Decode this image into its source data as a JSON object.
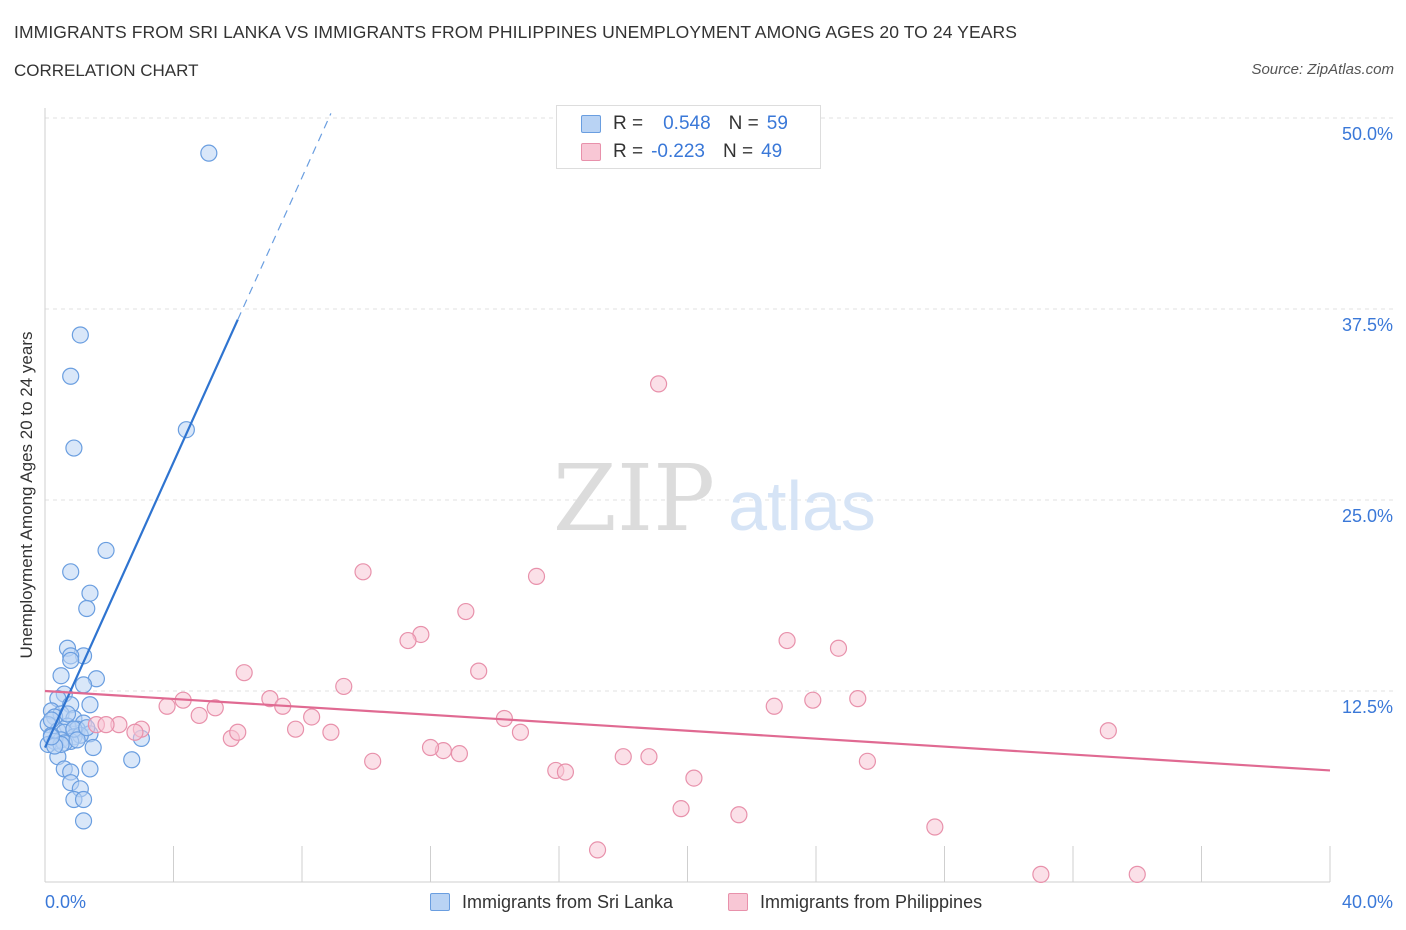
{
  "title": "IMMIGRANTS FROM SRI LANKA VS IMMIGRANTS FROM PHILIPPINES UNEMPLOYMENT AMONG AGES 20 TO 24 YEARS",
  "subtitle": "CORRELATION CHART",
  "source": "Source: ZipAtlas.com",
  "watermark": {
    "zip": "ZIP",
    "atlas": "atlas"
  },
  "legend": {
    "r_label": "R =",
    "n_label": "N =",
    "series": [
      {
        "name": "Immigrants from Sri Lanka",
        "r": "0.548",
        "n": "59",
        "fill": "#b9d3f4",
        "stroke": "#6a9ee0"
      },
      {
        "name": "Immigrants from Philippines",
        "r": "-0.223",
        "n": "49",
        "fill": "#f8c7d5",
        "stroke": "#e891ab"
      }
    ]
  },
  "chart_data": {
    "type": "scatter",
    "title": "IMMIGRANTS FROM SRI LANKA VS IMMIGRANTS FROM PHILIPPINES UNEMPLOYMENT AMONG AGES 20 TO 24 YEARS",
    "xlabel": "",
    "ylabel": "Unemployment Among Ages 20 to 24 years",
    "xlim": [
      0,
      40
    ],
    "ylim": [
      0,
      50
    ],
    "x_tick_labels": [
      {
        "value": 0,
        "label": "0.0%"
      },
      {
        "value": 40,
        "label": "40.0%"
      }
    ],
    "y_tick_labels": [
      {
        "value": 12.5,
        "label": "12.5%"
      },
      {
        "value": 25,
        "label": "25.0%"
      },
      {
        "value": 37.5,
        "label": "37.5%"
      },
      {
        "value": 50,
        "label": "50.0%"
      }
    ],
    "series": [
      {
        "name": "Immigrants from Sri Lanka",
        "color": "#6a9ee0",
        "trend": {
          "x0": 0,
          "y0": 8.8,
          "x1": 6.0,
          "y1": 36.8,
          "dash_x1": 8.9,
          "dash_y1": 50.3
        },
        "points": [
          [
            5.1,
            47.7
          ],
          [
            1.1,
            35.8
          ],
          [
            0.8,
            33.1
          ],
          [
            0.9,
            28.4
          ],
          [
            4.4,
            29.6
          ],
          [
            1.9,
            21.7
          ],
          [
            0.8,
            20.3
          ],
          [
            1.4,
            18.9
          ],
          [
            1.3,
            17.9
          ],
          [
            0.7,
            15.3
          ],
          [
            1.2,
            14.8
          ],
          [
            0.8,
            14.8
          ],
          [
            0.8,
            14.5
          ],
          [
            0.5,
            13.5
          ],
          [
            1.6,
            13.3
          ],
          [
            1.2,
            12.9
          ],
          [
            0.6,
            12.3
          ],
          [
            0.4,
            12.0
          ],
          [
            0.8,
            11.6
          ],
          [
            1.4,
            11.6
          ],
          [
            0.2,
            11.2
          ],
          [
            0.5,
            11.0
          ],
          [
            0.3,
            10.8
          ],
          [
            0.9,
            10.7
          ],
          [
            1.2,
            10.4
          ],
          [
            0.1,
            10.3
          ],
          [
            0.7,
            10.2
          ],
          [
            1.0,
            10.0
          ],
          [
            0.4,
            9.9
          ],
          [
            0.6,
            9.8
          ],
          [
            1.4,
            9.7
          ],
          [
            0.2,
            9.6
          ],
          [
            0.9,
            9.5
          ],
          [
            1.1,
            9.6
          ],
          [
            0.5,
            9.3
          ],
          [
            0.3,
            9.2
          ],
          [
            0.8,
            9.2
          ],
          [
            0.1,
            9.0
          ],
          [
            0.6,
            9.1
          ],
          [
            3.0,
            9.4
          ],
          [
            1.5,
            8.8
          ],
          [
            0.4,
            8.2
          ],
          [
            2.7,
            8.0
          ],
          [
            0.6,
            7.4
          ],
          [
            1.4,
            7.4
          ],
          [
            0.8,
            7.2
          ],
          [
            0.8,
            6.5
          ],
          [
            1.1,
            6.1
          ],
          [
            0.9,
            5.4
          ],
          [
            1.2,
            5.4
          ],
          [
            1.2,
            4.0
          ],
          [
            0.2,
            10.6
          ],
          [
            0.9,
            10.0
          ],
          [
            0.5,
            9.0
          ],
          [
            0.3,
            8.9
          ],
          [
            1.0,
            9.3
          ],
          [
            0.7,
            11.0
          ],
          [
            1.3,
            10.1
          ],
          [
            0.2,
            9.5
          ]
        ]
      },
      {
        "name": "Immigrants from Philippines",
        "color": "#e891ab",
        "trend": {
          "x0": 0,
          "y0": 12.5,
          "x1": 40.0,
          "y1": 7.3
        },
        "points": [
          [
            19.1,
            32.6
          ],
          [
            9.9,
            20.3
          ],
          [
            15.3,
            20.0
          ],
          [
            13.1,
            17.7
          ],
          [
            11.7,
            16.2
          ],
          [
            11.3,
            15.8
          ],
          [
            23.1,
            15.8
          ],
          [
            24.7,
            15.3
          ],
          [
            13.5,
            13.8
          ],
          [
            6.2,
            13.7
          ],
          [
            9.3,
            12.8
          ],
          [
            25.3,
            12.0
          ],
          [
            4.3,
            11.9
          ],
          [
            7.0,
            12.0
          ],
          [
            23.9,
            11.9
          ],
          [
            3.8,
            11.5
          ],
          [
            5.3,
            11.4
          ],
          [
            7.4,
            11.5
          ],
          [
            22.7,
            11.5
          ],
          [
            4.8,
            10.9
          ],
          [
            8.3,
            10.8
          ],
          [
            14.3,
            10.7
          ],
          [
            1.6,
            10.3
          ],
          [
            2.3,
            10.3
          ],
          [
            3.0,
            10.0
          ],
          [
            7.8,
            10.0
          ],
          [
            14.8,
            9.8
          ],
          [
            2.8,
            9.8
          ],
          [
            8.9,
            9.8
          ],
          [
            33.1,
            9.9
          ],
          [
            5.8,
            9.4
          ],
          [
            12.4,
            8.6
          ],
          [
            12.9,
            8.4
          ],
          [
            18.0,
            8.2
          ],
          [
            18.8,
            8.2
          ],
          [
            10.2,
            7.9
          ],
          [
            25.6,
            7.9
          ],
          [
            15.9,
            7.3
          ],
          [
            16.2,
            7.2
          ],
          [
            20.2,
            6.8
          ],
          [
            19.8,
            4.8
          ],
          [
            21.6,
            4.4
          ],
          [
            27.7,
            3.6
          ],
          [
            17.2,
            2.1
          ],
          [
            31.0,
            0.5
          ],
          [
            34.0,
            0.5
          ],
          [
            1.9,
            10.3
          ],
          [
            6.0,
            9.8
          ],
          [
            12.0,
            8.8
          ]
        ]
      }
    ]
  }
}
